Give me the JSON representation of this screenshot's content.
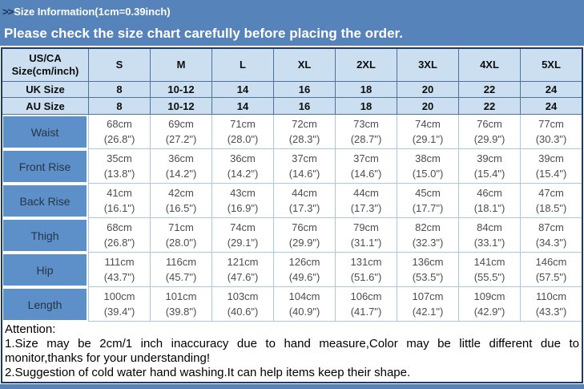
{
  "title_bar": {
    "prefix": ">>",
    "text": "Size Information(1cm=0.39inch)"
  },
  "notice_bar": {
    "text": "Please check the size chart carefully before placing the order."
  },
  "colors": {
    "bar_blue": "#5583ba",
    "label_cell_blue": "#5d90c8",
    "header_cell_light_blue": "#cbdff1",
    "outer_border_navy": "#1f3a5f",
    "data_grid_light_blue": "#a9c7e2"
  },
  "size_chart": {
    "corner_header_line1": "US/CA",
    "corner_header_line2": "Size(cm/inch)",
    "sizes": [
      "S",
      "M",
      "L",
      "XL",
      "2XL",
      "3XL",
      "4XL",
      "5XL"
    ],
    "uk_row": {
      "label": "UK Size",
      "values": [
        "8",
        "10-12",
        "14",
        "16",
        "18",
        "20",
        "22",
        "24"
      ]
    },
    "au_row": {
      "label": "AU Size",
      "values": [
        "8",
        "10-12",
        "14",
        "16",
        "18",
        "20",
        "22",
        "24"
      ]
    },
    "measurements": [
      {
        "label": "Waist",
        "cm": [
          "68cm",
          "69cm",
          "71cm",
          "72cm",
          "73cm",
          "74cm",
          "76cm",
          "77cm"
        ],
        "inch": [
          "(26.8\")",
          "(27.2\")",
          "(28.0\")",
          "(28.3\")",
          "(28.7\")",
          "(29.1\")",
          "(29.9\")",
          "(30.3\")"
        ]
      },
      {
        "label": "Front Rise",
        "cm": [
          "35cm",
          "36cm",
          "36cm",
          "37cm",
          "37cm",
          "38cm",
          "39cm",
          "39cm"
        ],
        "inch": [
          "(13.8\")",
          "(14.2\")",
          "(14.2\")",
          "(14.6\")",
          "(14.6\")",
          "(15.0\")",
          "(15.4\")",
          "(15.4\")"
        ]
      },
      {
        "label": "Back Rise",
        "cm": [
          "41cm",
          "42cm",
          "43cm",
          "44cm",
          "44cm",
          "45cm",
          "46cm",
          "47cm"
        ],
        "inch": [
          "(16.1\")",
          "(16.5\")",
          "(16.9\")",
          "(17.3\")",
          "(17.3\")",
          "(17.7\")",
          "(18.1\")",
          "(18.5\")"
        ]
      },
      {
        "label": "Thigh",
        "cm": [
          "68cm",
          "71cm",
          "74cm",
          "76cm",
          "79cm",
          "82cm",
          "84cm",
          "87cm"
        ],
        "inch": [
          "(26.8\")",
          "(28.0\")",
          "(29.1\")",
          "(29.9\")",
          "(31.1\")",
          "(32.3\")",
          "(33.1\")",
          "(34.3\")"
        ]
      },
      {
        "label": "Hip",
        "cm": [
          "111cm",
          "116cm",
          "121cm",
          "126cm",
          "131cm",
          "136cm",
          "141cm",
          "146cm"
        ],
        "inch": [
          "(43.7\")",
          "(45.7\")",
          "(47.6\")",
          "(49.6\")",
          "(51.6\")",
          "(53.5\")",
          "(55.5\")",
          "(57.5\")"
        ]
      },
      {
        "label": "Length",
        "cm": [
          "100cm",
          "101cm",
          "103cm",
          "104cm",
          "106cm",
          "107cm",
          "109cm",
          "110cm"
        ],
        "inch": [
          "(39.4\")",
          "(39.8\")",
          "(40.6\")",
          "(40.9\")",
          "(41.7\")",
          "(42.1\")",
          "(42.9\")",
          "(43.3\")"
        ]
      }
    ]
  },
  "attention": {
    "title": "Attention:",
    "note1": "1.Size may be 2cm/1 inch inaccuracy due to hand measure,Color may be little different due to monitor,thanks for your understanding!",
    "note2": "2.Suggestion of cold water hand washing.It can help items keep their shape."
  }
}
